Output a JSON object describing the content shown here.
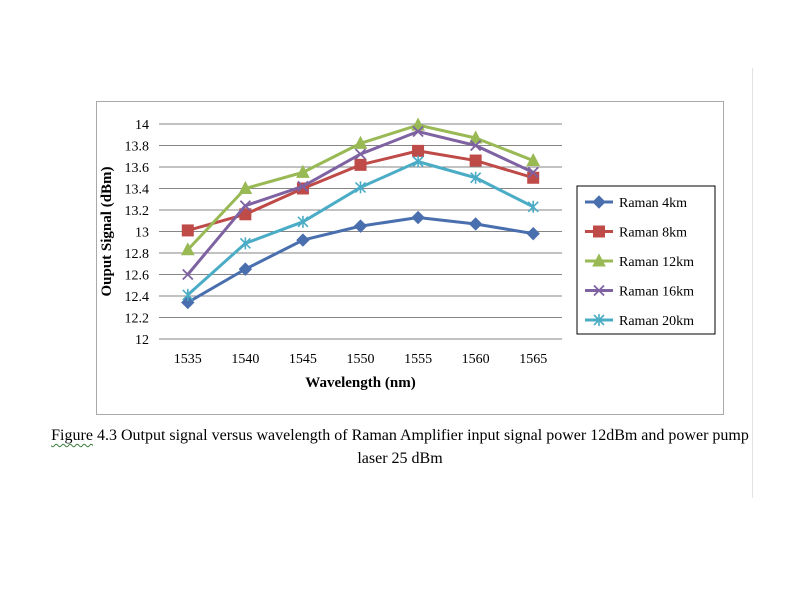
{
  "chart_data": {
    "type": "line",
    "xlabel": "Wavelength (nm)",
    "ylabel": "Ouput Signal (dBm)",
    "ylim": [
      12,
      14
    ],
    "yticks": [
      "12",
      "12.2",
      "12.4",
      "12.6",
      "12.8",
      "13",
      "13.2",
      "13.4",
      "13.6",
      "13.8",
      "14"
    ],
    "categories": [
      "1535",
      "1540",
      "1545",
      "1550",
      "1555",
      "1560",
      "1565"
    ],
    "grid": "horizontal",
    "legend_position": "right",
    "series": [
      {
        "name": "Raman 4km",
        "color": "#4a6fae",
        "marker": "diamond",
        "values": [
          12.34,
          12.65,
          12.92,
          13.05,
          13.13,
          13.07,
          12.98
        ]
      },
      {
        "name": "Raman 8km",
        "color": "#be4b48",
        "marker": "square",
        "values": [
          13.01,
          13.16,
          13.4,
          13.62,
          13.75,
          13.66,
          13.5
        ]
      },
      {
        "name": "Raman 12km",
        "color": "#98b954",
        "marker": "triangle",
        "values": [
          12.83,
          13.4,
          13.55,
          13.82,
          13.99,
          13.87,
          13.66
        ]
      },
      {
        "name": "Raman 16km",
        "color": "#7e62a1",
        "marker": "x",
        "values": [
          12.6,
          13.24,
          13.42,
          13.72,
          13.93,
          13.8,
          13.55
        ]
      },
      {
        "name": "Raman 20km",
        "color": "#4bacc6",
        "marker": "star",
        "values": [
          12.41,
          12.89,
          13.09,
          13.41,
          13.65,
          13.5,
          13.23
        ]
      }
    ]
  },
  "caption": {
    "figure_label": "Figure",
    "text": " 4.3 Output signal versus wavelength of Raman Amplifier input signal power 12dBm and power pump laser 25 dBm"
  }
}
